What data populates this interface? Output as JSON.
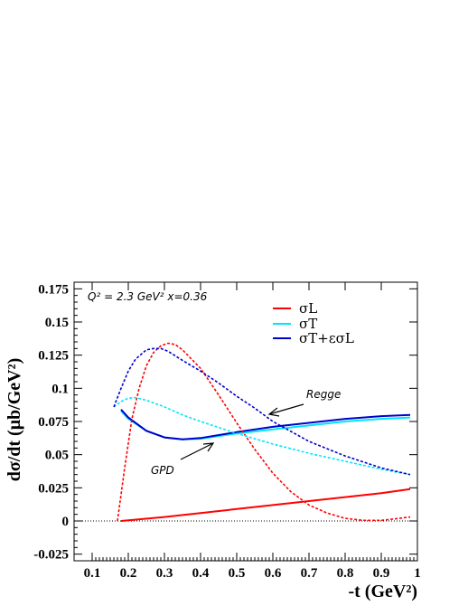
{
  "chart_data": {
    "type": "line",
    "xlabel": "-t (GeV²)",
    "ylabel": "dσ/dt (μb/GeV²)",
    "xlim": [
      0.05,
      1.0
    ],
    "ylim": [
      -0.03,
      0.18
    ],
    "xticks": [
      "0.1",
      "0.2",
      "0.3",
      "0.4",
      "0.5",
      "0.6",
      "0.7",
      "0.8",
      "0.9",
      "1"
    ],
    "yticks": [
      "-0.025",
      "0",
      "0.025",
      "0.05",
      "0.075",
      "0.1",
      "0.125",
      "0.15",
      "0.175"
    ],
    "annotation": "Q² = 2.3 GeV²  x=0.36",
    "labels": {
      "regge": "Regge",
      "gpd": "GPD"
    },
    "legend": {
      "position": "top-right",
      "entries": [
        {
          "label": "σL",
          "color": "#ff0000"
        },
        {
          "label": "σT",
          "color": "#00e5ff"
        },
        {
          "label": "σT+εσL",
          "color": "#0000cc"
        }
      ]
    },
    "zero_line": "dotted",
    "series": [
      {
        "model": "GPD",
        "label": "σL",
        "color": "#ff0000",
        "style": "solid",
        "x": [
          0.18,
          0.3,
          0.4,
          0.5,
          0.6,
          0.7,
          0.8,
          0.9,
          0.98
        ],
        "y": [
          0.0,
          0.003,
          0.006,
          0.009,
          0.012,
          0.015,
          0.018,
          0.021,
          0.024
        ]
      },
      {
        "model": "GPD",
        "label": "σT",
        "color": "#00e5ff",
        "style": "solid",
        "x": [
          0.18,
          0.2,
          0.25,
          0.3,
          0.35,
          0.4,
          0.5,
          0.6,
          0.7,
          0.8,
          0.9,
          0.98
        ],
        "y": [
          0.083,
          0.077,
          0.068,
          0.063,
          0.0615,
          0.062,
          0.066,
          0.069,
          0.072,
          0.075,
          0.077,
          0.078
        ]
      },
      {
        "model": "GPD",
        "label": "σT+εσL",
        "color": "#0000cc",
        "style": "solid",
        "x": [
          0.18,
          0.2,
          0.25,
          0.3,
          0.35,
          0.4,
          0.5,
          0.6,
          0.7,
          0.8,
          0.9,
          0.98
        ],
        "y": [
          0.084,
          0.078,
          0.068,
          0.063,
          0.0615,
          0.0625,
          0.067,
          0.071,
          0.074,
          0.077,
          0.079,
          0.08
        ]
      },
      {
        "model": "Regge",
        "label": "σL",
        "color": "#ff0000",
        "style": "dashed",
        "x": [
          0.17,
          0.19,
          0.21,
          0.23,
          0.25,
          0.27,
          0.29,
          0.31,
          0.33,
          0.35,
          0.4,
          0.45,
          0.5,
          0.55,
          0.6,
          0.65,
          0.7,
          0.75,
          0.8,
          0.85,
          0.9,
          0.95,
          0.98
        ],
        "y": [
          0.0,
          0.04,
          0.077,
          0.1,
          0.117,
          0.127,
          0.132,
          0.134,
          0.133,
          0.129,
          0.115,
          0.095,
          0.074,
          0.054,
          0.036,
          0.022,
          0.012,
          0.006,
          0.002,
          0.0005,
          0.0005,
          0.002,
          0.003
        ]
      },
      {
        "model": "Regge",
        "label": "σT",
        "color": "#00e5ff",
        "style": "dashed",
        "x": [
          0.16,
          0.18,
          0.2,
          0.22,
          0.25,
          0.3,
          0.35,
          0.4,
          0.5,
          0.6,
          0.7,
          0.8,
          0.9,
          0.98
        ],
        "y": [
          0.086,
          0.09,
          0.0925,
          0.093,
          0.091,
          0.086,
          0.08,
          0.075,
          0.066,
          0.058,
          0.051,
          0.045,
          0.039,
          0.035
        ]
      },
      {
        "model": "Regge",
        "label": "σT+εσL",
        "color": "#0000cc",
        "style": "dashed",
        "x": [
          0.16,
          0.18,
          0.2,
          0.22,
          0.25,
          0.27,
          0.29,
          0.31,
          0.35,
          0.4,
          0.45,
          0.5,
          0.55,
          0.6,
          0.7,
          0.8,
          0.9,
          0.98
        ],
        "y": [
          0.086,
          0.1,
          0.113,
          0.122,
          0.129,
          0.13,
          0.13,
          0.128,
          0.121,
          0.113,
          0.104,
          0.094,
          0.085,
          0.075,
          0.06,
          0.049,
          0.04,
          0.035
        ]
      }
    ]
  }
}
